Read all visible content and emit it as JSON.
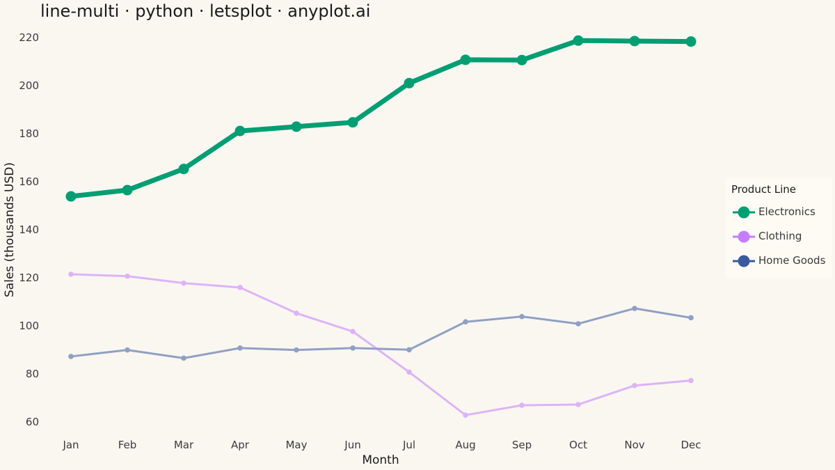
{
  "title": "line-multi · python · letsplot · anyplot.ai",
  "chart_data": {
    "type": "line",
    "title": "line-multi · python · letsplot · anyplot.ai",
    "xlabel": "Month",
    "ylabel": "Sales (thousands USD)",
    "categories": [
      "Jan",
      "Feb",
      "Mar",
      "Apr",
      "May",
      "Jun",
      "Jul",
      "Aug",
      "Sep",
      "Oct",
      "Nov",
      "Dec"
    ],
    "ylim": [
      56,
      224
    ],
    "yticks": [
      60,
      80,
      100,
      120,
      140,
      160,
      180,
      200,
      220
    ],
    "grid": false,
    "legend": {
      "title": "Product Line",
      "position": "right"
    },
    "series": [
      {
        "name": "Electronics",
        "color": "#009e73",
        "values": [
          153.9,
          156.5,
          165.3,
          181.1,
          182.9,
          184.7,
          201.0,
          210.7,
          210.6,
          218.7,
          218.5,
          218.3
        ]
      },
      {
        "name": "Clothing",
        "color": "#c77dff",
        "values": [
          121.5,
          120.7,
          117.8,
          116.0,
          105.3,
          97.7,
          80.8,
          62.9,
          67.0,
          67.3,
          75.2,
          77.3
        ]
      },
      {
        "name": "Home Goods",
        "color": "#3a5a9e",
        "values": [
          87.3,
          90.0,
          86.6,
          90.8,
          90.0,
          90.8,
          90.1,
          101.7,
          103.9,
          100.9,
          107.3,
          103.4
        ]
      }
    ]
  }
}
